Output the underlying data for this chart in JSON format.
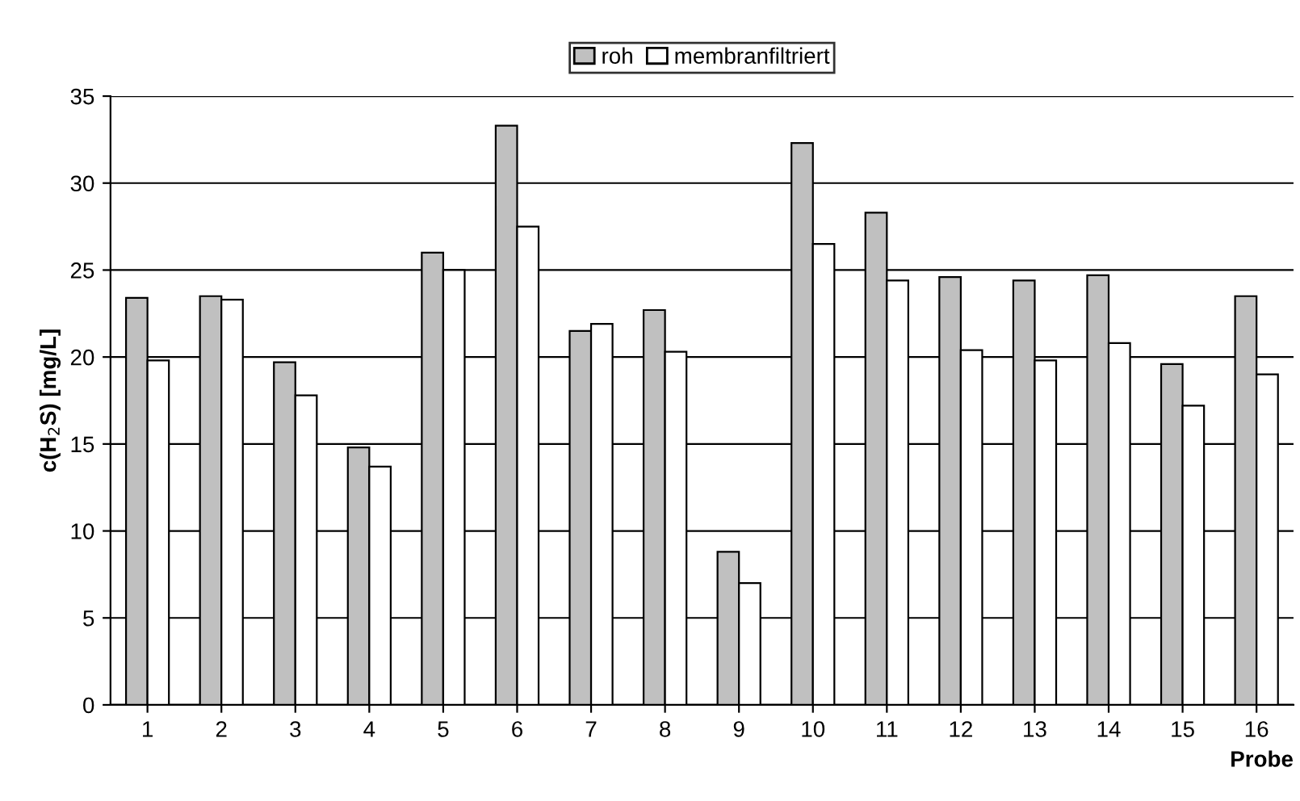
{
  "chart_data": {
    "type": "bar",
    "xlabel": "Probe",
    "ylabel": "c(H$_{2}$S) [mg/L]",
    "categories": [
      "1",
      "2",
      "3",
      "4",
      "5",
      "6",
      "7",
      "8",
      "9",
      "10",
      "11",
      "12",
      "13",
      "14",
      "15",
      "16"
    ],
    "series": [
      {
        "name": "roh",
        "color": "#c0c0c0",
        "values": [
          23.4,
          23.5,
          19.7,
          14.8,
          26,
          33.3,
          21.5,
          22.7,
          8.8,
          32.3,
          28.3,
          24.6,
          24.4,
          24.7,
          19.6,
          23.5
        ]
      },
      {
        "name": "membranfiltriert",
        "color": "#ffffff",
        "values": [
          19.8,
          23.3,
          17.8,
          13.7,
          25,
          27.5,
          21.9,
          20.3,
          7.0,
          26.5,
          24.4,
          20.4,
          19.8,
          20.8,
          17.2,
          19.0
        ]
      }
    ],
    "ylim": [
      0,
      35
    ],
    "yticks": [
      0,
      5,
      10,
      15,
      20,
      25,
      30,
      35
    ],
    "grid": "y",
    "legend": "top"
  }
}
